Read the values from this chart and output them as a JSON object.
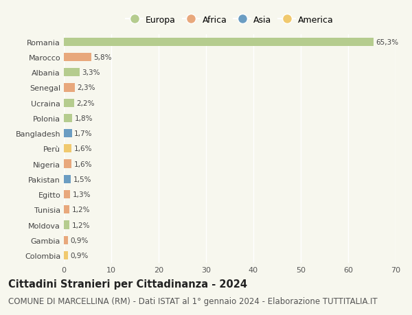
{
  "countries": [
    "Romania",
    "Marocco",
    "Albania",
    "Senegal",
    "Ucraina",
    "Polonia",
    "Bangladesh",
    "Perù",
    "Nigeria",
    "Pakistan",
    "Egitto",
    "Tunisia",
    "Moldova",
    "Gambia",
    "Colombia"
  ],
  "values": [
    65.3,
    5.8,
    3.3,
    2.3,
    2.2,
    1.8,
    1.7,
    1.6,
    1.6,
    1.5,
    1.3,
    1.2,
    1.2,
    0.9,
    0.9
  ],
  "labels": [
    "65,3%",
    "5,8%",
    "3,3%",
    "2,3%",
    "2,2%",
    "1,8%",
    "1,7%",
    "1,6%",
    "1,6%",
    "1,5%",
    "1,3%",
    "1,2%",
    "1,2%",
    "0,9%",
    "0,9%"
  ],
  "continents": [
    "Europa",
    "Africa",
    "Europa",
    "Africa",
    "Europa",
    "Europa",
    "Asia",
    "America",
    "Africa",
    "Asia",
    "Africa",
    "Africa",
    "Europa",
    "Africa",
    "America"
  ],
  "colors": {
    "Europa": "#b5cc8e",
    "Africa": "#e8a87c",
    "Asia": "#6b9dc2",
    "America": "#f0c96e"
  },
  "xlim": [
    0,
    70
  ],
  "xticks": [
    0,
    10,
    20,
    30,
    40,
    50,
    60,
    70
  ],
  "background_color": "#f7f7ee",
  "plot_bg_color": "#f7f7ee",
  "grid_color": "#ffffff",
  "title": "Cittadini Stranieri per Cittadinanza - 2024",
  "subtitle": "COMUNE DI MARCELLINA (RM) - Dati ISTAT al 1° gennaio 2024 - Elaborazione TUTTITALIA.IT",
  "title_fontsize": 10.5,
  "subtitle_fontsize": 8.5,
  "bar_label_fontsize": 7.5,
  "ytick_fontsize": 8,
  "xtick_fontsize": 8,
  "legend_fontsize": 9,
  "legend_order": [
    "Europa",
    "Africa",
    "Asia",
    "America"
  ]
}
